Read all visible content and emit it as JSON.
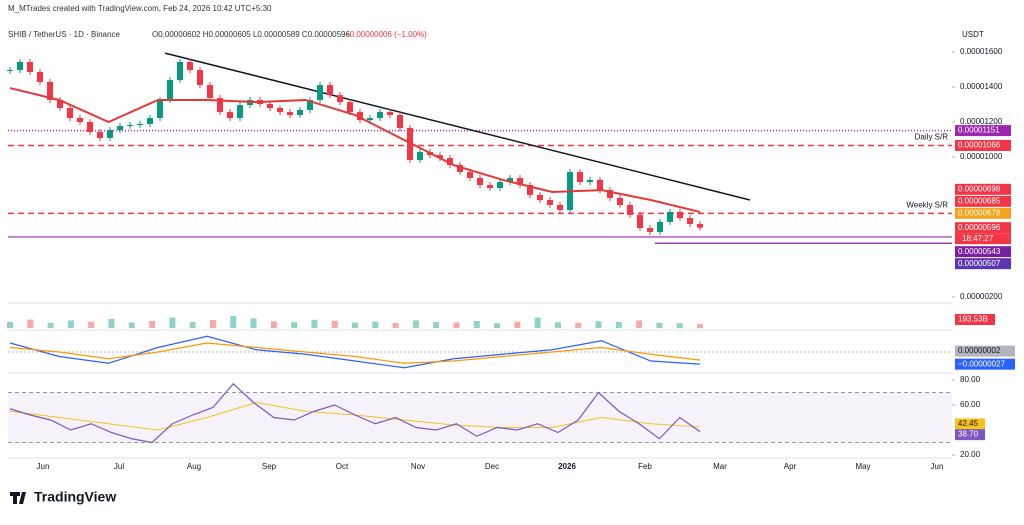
{
  "header": {
    "author": "M_MTrades created with TradingView.com, Feb 24, 2026 10:42 UTC+5:30",
    "symbol": "SHIB / TetherUS · 1D · Binance",
    "ohlc": "O0.00000602 H0.00000605 L0.00000589 C0.00000596",
    "change": "−0.00000006 (−1.00%)",
    "currency": "USDT",
    "brand": "TradingView"
  },
  "chart_data": {
    "type": "candlestick",
    "closes": [
      1.497e-05,
      1.543e-05,
      1.486e-05,
      1.429e-05,
      1.326e-05,
      1.28e-05,
      1.223e-05,
      1.2e-05,
      1.143e-05,
      1.109e-05,
      1.154e-05,
      1.177e-05,
      1.183e-05,
      1.189e-05,
      1.223e-05,
      1.326e-05,
      1.44e-05,
      1.543e-05,
      1.497e-05,
      1.411e-05,
      1.337e-05,
      1.257e-05,
      1.223e-05,
      1.297e-05,
      1.326e-05,
      1.303e-05,
      1.28e-05,
      1.257e-05,
      1.24e-05,
      1.269e-05,
      1.326e-05,
      1.411e-05,
      1.354e-05,
      1.314e-05,
      1.257e-05,
      1.211e-05,
      1.223e-05,
      1.257e-05,
      1.24e-05,
      1.166e-05,
      9.83e-06,
      1.029e-05,
      1.011e-05,
      9.94e-06,
      9.54e-06,
      9.14e-06,
      8.8e-06,
      8.4e-06,
      8.23e-06,
      8.57e-06,
      8.8e-06,
      8.4e-06,
      7.83e-06,
      7.54e-06,
      7.26e-06,
      6.97e-06,
      9.14e-06,
      8.57e-06,
      8.69e-06,
      8.11e-06,
      7.66e-06,
      7.26e-06,
      6.69e-06,
      5.94e-06,
      5.71e-06,
      6.29e-06,
      6.86e-06,
      6.51e-06,
      6.17e-06,
      5.96e-06
    ],
    "up_color": "#089981",
    "down_color": "#f23645",
    "ma": [
      1.394e-05,
      1.326e-05,
      1.2e-05,
      1.326e-05,
      1.326e-05,
      1.314e-05,
      1.326e-05,
      1.24e-05,
      1.097e-05,
      9.54e-06,
      8.69e-06,
      8e-06,
      8.11e-06,
      7.54e-06,
      6.86e-06
    ],
    "ma_color": "#e53935",
    "trendline": [
      1.594e-05,
      7.54e-06
    ],
    "ylim": [
      1.54e-06,
      1.726e-05
    ],
    "yticks": [
      {
        "value": 1.6e-05,
        "label": "0.00001600"
      },
      {
        "value": 1.4e-05,
        "label": "0.00001400"
      },
      {
        "value": 1.2e-05,
        "label": "0.00001200"
      },
      {
        "value": 1e-05,
        "label": "0.00001000"
      },
      {
        "value": 2e-06,
        "label": "0.00000200"
      }
    ],
    "xtick_labels": [
      "Jun",
      "Jul",
      "Aug",
      "Sep",
      "Oct",
      "Nov",
      "Dec",
      "2026",
      "Feb",
      "Mar",
      "Apr",
      "May",
      "Jun"
    ],
    "levels": [
      {
        "value": 1.151e-05,
        "color": "#9c27b0",
        "dash": "1 2"
      },
      {
        "value": 1.066e-05,
        "color": "#f23645",
        "dash": "6 4",
        "label": "Daily S/R"
      },
      {
        "value": 6.78e-06,
        "color": "#f23645",
        "dash": "6 4",
        "label": "Weekly S/R"
      },
      {
        "value": 5.43e-06,
        "color": "#9c27b0",
        "dash": "none"
      },
      {
        "value": 5.07e-06,
        "color": "#7b1fa2",
        "dash": "none"
      }
    ],
    "price_labels": [
      {
        "value": 1.151e-05,
        "label": "0.00001151",
        "color": "#9c27b0"
      },
      {
        "value": 1.066e-05,
        "label": "0.00001066",
        "color": "#f23645"
      },
      {
        "value": 6.98e-06,
        "label": "0.00000698",
        "color": "#f23645"
      },
      {
        "value": 6.85e-06,
        "label": "0.00000685",
        "color": "#f23645"
      },
      {
        "value": 6.78e-06,
        "label": "0.00000678",
        "color": "#f7a21b"
      },
      {
        "value": 5.96e-06,
        "label": "0.00000596",
        "color": "#f23645",
        "timer": "18:47:27"
      },
      {
        "value": 5.43e-06,
        "label": "0.00000543",
        "color": "#7b1fa2"
      },
      {
        "value": 5.07e-06,
        "label": "0.00000507",
        "color": "#5e35b1"
      }
    ],
    "volume": [
      300000000000,
      420000000000,
      260000000000,
      380000000000,
      310000000000,
      450000000000,
      280000000000,
      350000000000,
      520000000000,
      300000000000,
      400000000000,
      600000000000,
      480000000000,
      330000000000,
      290000000000,
      410000000000,
      360000000000,
      270000000000,
      320000000000,
      250000000000,
      380000000000,
      300000000000,
      280000000000,
      350000000000,
      240000000000,
      310000000000,
      520000000000,
      290000000000,
      260000000000,
      340000000000,
      300000000000,
      380000000000,
      260000000000,
      240000000000,
      193530000000
    ],
    "volume_label": {
      "value": 193530000000,
      "label": "193.53B"
    },
    "macd": [
      2e-07,
      -1e-07,
      -2.5e-07,
      1e-07,
      3.5e-07,
      5e-08,
      -5e-08,
      -2e-07,
      -3.5e-07,
      -1.5e-07,
      -5e-08,
      5e-08,
      2.5e-07,
      -2e-07,
      -2.7e-07
    ],
    "macd_signal": [
      1e-07,
      0,
      -1.5e-07,
      0,
      2e-07,
      1e-07,
      0,
      -1e-07,
      -2.5e-07,
      -2e-07,
      -1e-07,
      0,
      1e-07,
      -5e-08,
      -1.8e-07
    ],
    "macd_labels": [
      {
        "value": 2e-08,
        "label": "0.00000002",
        "color": "#b2b5be"
      },
      {
        "value": -2.7e-07,
        "label": "−0.00000027",
        "color": "#2962ff"
      }
    ],
    "rsi": [
      57,
      52,
      48,
      40,
      45,
      38,
      33,
      30,
      45,
      52,
      58,
      77,
      62,
      50,
      48,
      55,
      60,
      52,
      45,
      50,
      42,
      40,
      45,
      35,
      42,
      40,
      45,
      38,
      48,
      70,
      55,
      45,
      33,
      50,
      38.7
    ],
    "rsi_ma": [
      55,
      50,
      45,
      40,
      50,
      62,
      55,
      52,
      48,
      44,
      42,
      42,
      50,
      45,
      42.45
    ],
    "rsi_yticks": [
      {
        "value": 80,
        "label": "80.00"
      },
      {
        "value": 60,
        "label": "60.00"
      },
      {
        "value": 20,
        "label": "20.00"
      }
    ],
    "rsi_bands": [
      70,
      30
    ],
    "rsi_labels": [
      {
        "value": 42.45,
        "label": "42.45",
        "color": "#f7c21b"
      },
      {
        "value": 38.7,
        "label": "38.70",
        "color": "#7e57c2"
      }
    ]
  }
}
